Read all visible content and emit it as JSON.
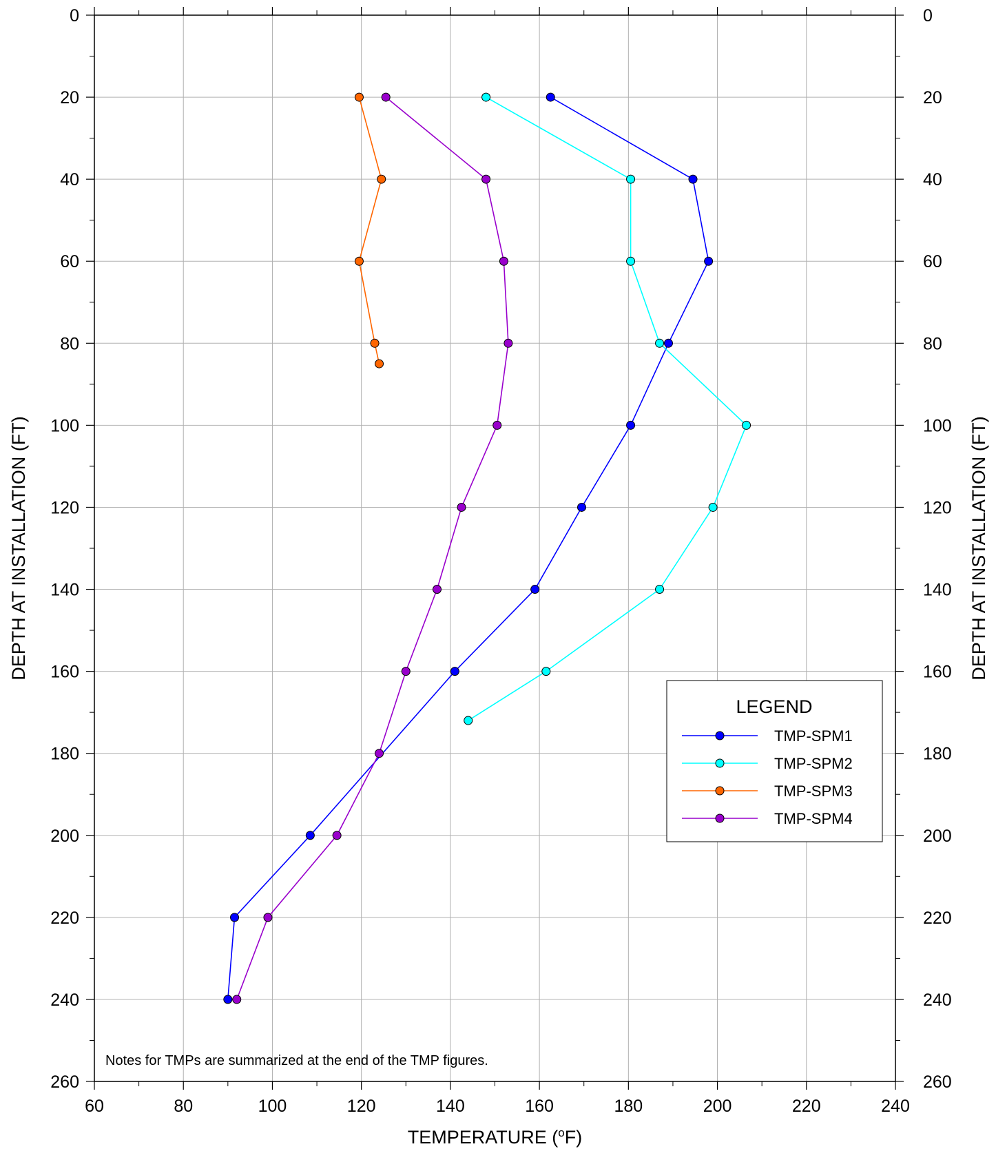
{
  "chart_data": {
    "type": "line",
    "xlabel": "TEMPERATURE (",
    "xlabel_sup": "o",
    "xlabel_suffix": "F)",
    "ylabel": "DEPTH AT INSTALLATION (FT)",
    "xlim": [
      60,
      240
    ],
    "ylim": [
      0,
      260
    ],
    "y_inverted": true,
    "x_ticks": [
      "60",
      "80",
      "100",
      "120",
      "140",
      "160",
      "180",
      "200",
      "220",
      "240"
    ],
    "y_ticks": [
      "0",
      "20",
      "40",
      "60",
      "80",
      "100",
      "120",
      "140",
      "160",
      "180",
      "200",
      "220",
      "240",
      "260"
    ],
    "grid": true,
    "legend": {
      "title": "LEGEND",
      "placement": "lower-right"
    },
    "note": "Notes for TMPs are summarized at the end of the TMP figures.",
    "series": [
      {
        "name": "TMP-SPM1",
        "color": "#0000ff",
        "points": [
          [
            162.5,
            20
          ],
          [
            194.5,
            40
          ],
          [
            198,
            60
          ],
          [
            189,
            80
          ],
          [
            180.5,
            100
          ],
          [
            169.5,
            120
          ],
          [
            159,
            140
          ],
          [
            141,
            160
          ],
          [
            108.5,
            200
          ],
          [
            91.5,
            220
          ],
          [
            90,
            240
          ]
        ]
      },
      {
        "name": "TMP-SPM2",
        "color": "#00ffff",
        "points": [
          [
            148,
            20
          ],
          [
            180.5,
            40
          ],
          [
            180.5,
            60
          ],
          [
            187,
            80
          ],
          [
            206.5,
            100
          ],
          [
            199,
            120
          ],
          [
            187,
            140
          ],
          [
            161.5,
            160
          ],
          [
            144,
            172
          ]
        ]
      },
      {
        "name": "TMP-SPM3",
        "color": "#ff6600",
        "points": [
          [
            119.5,
            20
          ],
          [
            124.5,
            40
          ],
          [
            119.5,
            60
          ],
          [
            123,
            80
          ],
          [
            124,
            85
          ]
        ]
      },
      {
        "name": "TMP-SPM4",
        "color": "#9900cc",
        "points": [
          [
            125.5,
            20
          ],
          [
            148,
            40
          ],
          [
            152,
            60
          ],
          [
            153,
            80
          ],
          [
            150.5,
            100
          ],
          [
            142.5,
            120
          ],
          [
            137,
            140
          ],
          [
            130,
            160
          ],
          [
            124,
            180
          ],
          [
            114.5,
            200
          ],
          [
            99,
            220
          ],
          [
            92,
            240
          ]
        ]
      }
    ]
  }
}
